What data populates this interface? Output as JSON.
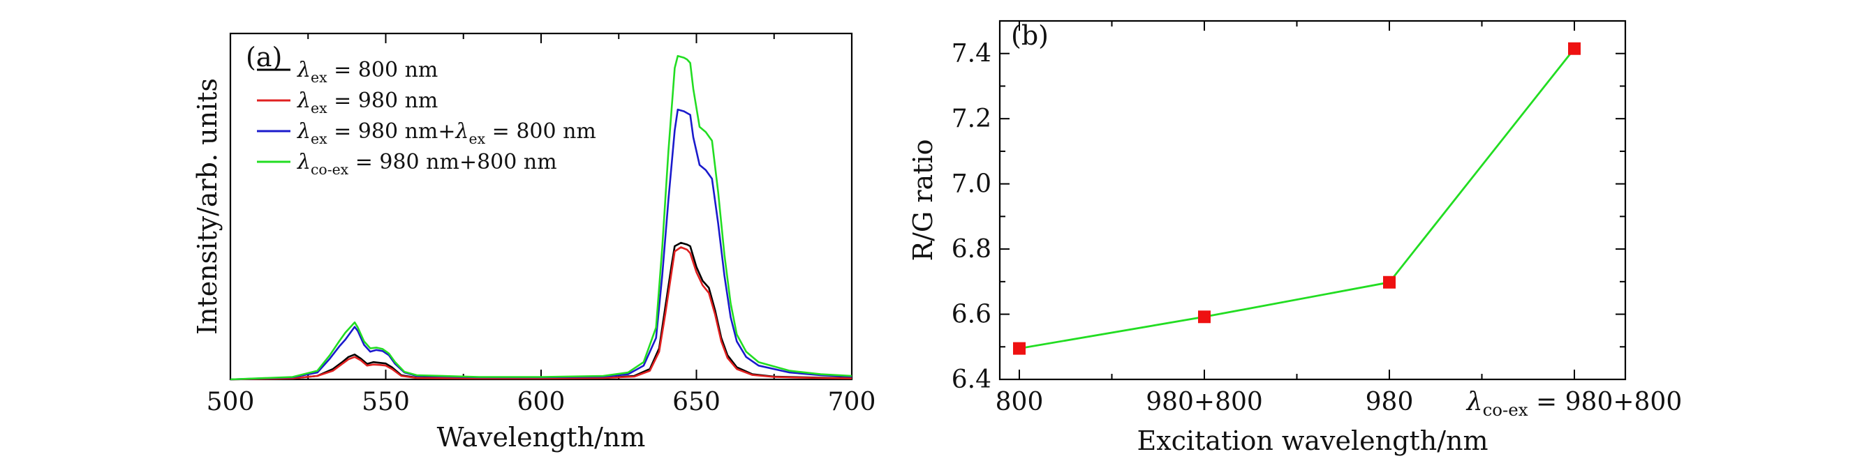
{
  "chart_data": [
    {
      "type": "line",
      "panel_label": "(a)",
      "xlabel": "Wavelength/nm",
      "ylabel": "Intensity/arb. units",
      "xlim": [
        500,
        700
      ],
      "ylim": [
        0,
        1.0
      ],
      "xticks": [
        500,
        550,
        600,
        650,
        700
      ],
      "x_tick_labels": [
        "500",
        "550",
        "600",
        "650",
        "700"
      ],
      "legend_position": "top-left",
      "series": [
        {
          "name": "800",
          "legend": {
            "symbol": "λ",
            "sub": "ex",
            "rest": " = 800 nm"
          },
          "color": "#000000",
          "points": [
            [
              500,
              0
            ],
            [
              520,
              0.003
            ],
            [
              528,
              0.01
            ],
            [
              533,
              0.03
            ],
            [
              536,
              0.05
            ],
            [
              538,
              0.065
            ],
            [
              540,
              0.072
            ],
            [
              542,
              0.06
            ],
            [
              544,
              0.045
            ],
            [
              546,
              0.05
            ],
            [
              548,
              0.048
            ],
            [
              550,
              0.046
            ],
            [
              552,
              0.035
            ],
            [
              555,
              0.012
            ],
            [
              560,
              0.005
            ],
            [
              580,
              0.003
            ],
            [
              600,
              0.003
            ],
            [
              620,
              0.004
            ],
            [
              630,
              0.01
            ],
            [
              635,
              0.03
            ],
            [
              638,
              0.09
            ],
            [
              640,
              0.21
            ],
            [
              642,
              0.33
            ],
            [
              643,
              0.385
            ],
            [
              645,
              0.395
            ],
            [
              647,
              0.39
            ],
            [
              648,
              0.385
            ],
            [
              650,
              0.325
            ],
            [
              652,
              0.285
            ],
            [
              654,
              0.265
            ],
            [
              656,
              0.2
            ],
            [
              658,
              0.12
            ],
            [
              660,
              0.07
            ],
            [
              663,
              0.035
            ],
            [
              668,
              0.015
            ],
            [
              675,
              0.008
            ],
            [
              690,
              0.005
            ],
            [
              700,
              0.004
            ]
          ]
        },
        {
          "name": "980",
          "legend": {
            "symbol": "λ",
            "sub": "ex",
            "rest": " = 980 nm"
          },
          "color": "#e02020",
          "points": [
            [
              500,
              0
            ],
            [
              520,
              0.003
            ],
            [
              528,
              0.01
            ],
            [
              533,
              0.025
            ],
            [
              536,
              0.045
            ],
            [
              538,
              0.058
            ],
            [
              540,
              0.065
            ],
            [
              542,
              0.055
            ],
            [
              544,
              0.04
            ],
            [
              546,
              0.043
            ],
            [
              548,
              0.042
            ],
            [
              550,
              0.04
            ],
            [
              552,
              0.03
            ],
            [
              555,
              0.01
            ],
            [
              560,
              0.004
            ],
            [
              580,
              0.003
            ],
            [
              600,
              0.003
            ],
            [
              620,
              0.004
            ],
            [
              630,
              0.008
            ],
            [
              635,
              0.025
            ],
            [
              638,
              0.08
            ],
            [
              640,
              0.19
            ],
            [
              642,
              0.31
            ],
            [
              643,
              0.37
            ],
            [
              645,
              0.382
            ],
            [
              647,
              0.375
            ],
            [
              648,
              0.365
            ],
            [
              650,
              0.31
            ],
            [
              652,
              0.272
            ],
            [
              654,
              0.25
            ],
            [
              656,
              0.188
            ],
            [
              658,
              0.11
            ],
            [
              660,
              0.062
            ],
            [
              663,
              0.03
            ],
            [
              668,
              0.013
            ],
            [
              675,
              0.007
            ],
            [
              690,
              0.004
            ],
            [
              700,
              0.003
            ]
          ]
        },
        {
          "name": "980+800",
          "legend": {
            "symbol": "λ",
            "sub": "ex",
            "rest": " = 980 nm+",
            "symbol2": "λ",
            "sub2": "ex",
            "rest2": " = 800 nm"
          },
          "color": "#1a1acc",
          "points": [
            [
              500,
              0
            ],
            [
              520,
              0.006
            ],
            [
              528,
              0.02
            ],
            [
              532,
              0.06
            ],
            [
              535,
              0.095
            ],
            [
              537,
              0.115
            ],
            [
              539,
              0.14
            ],
            [
              540,
              0.152
            ],
            [
              541,
              0.14
            ],
            [
              543,
              0.1
            ],
            [
              545,
              0.08
            ],
            [
              547,
              0.085
            ],
            [
              549,
              0.082
            ],
            [
              551,
              0.07
            ],
            [
              553,
              0.045
            ],
            [
              556,
              0.02
            ],
            [
              560,
              0.01
            ],
            [
              580,
              0.006
            ],
            [
              600,
              0.006
            ],
            [
              620,
              0.008
            ],
            [
              628,
              0.015
            ],
            [
              633,
              0.04
            ],
            [
              637,
              0.12
            ],
            [
              639,
              0.3
            ],
            [
              641,
              0.52
            ],
            [
              643,
              0.72
            ],
            [
              644,
              0.78
            ],
            [
              646,
              0.775
            ],
            [
              647,
              0.77
            ],
            [
              648,
              0.765
            ],
            [
              649,
              0.7
            ],
            [
              651,
              0.62
            ],
            [
              653,
              0.605
            ],
            [
              655,
              0.58
            ],
            [
              657,
              0.45
            ],
            [
              659,
              0.3
            ],
            [
              661,
              0.18
            ],
            [
              663,
              0.11
            ],
            [
              666,
              0.065
            ],
            [
              670,
              0.04
            ],
            [
              680,
              0.02
            ],
            [
              690,
              0.012
            ],
            [
              700,
              0.008
            ]
          ]
        },
        {
          "name": "co-ex 980+800",
          "legend": {
            "symbol": "λ",
            "sub": "co-ex",
            "rest": " = 980 nm+800 nm"
          },
          "color": "#22dd22",
          "points": [
            [
              500,
              0
            ],
            [
              520,
              0.007
            ],
            [
              528,
              0.025
            ],
            [
              532,
              0.07
            ],
            [
              535,
              0.11
            ],
            [
              537,
              0.135
            ],
            [
              539,
              0.155
            ],
            [
              540,
              0.165
            ],
            [
              541,
              0.15
            ],
            [
              543,
              0.11
            ],
            [
              545,
              0.09
            ],
            [
              547,
              0.092
            ],
            [
              549,
              0.088
            ],
            [
              551,
              0.075
            ],
            [
              553,
              0.05
            ],
            [
              556,
              0.022
            ],
            [
              560,
              0.012
            ],
            [
              580,
              0.007
            ],
            [
              600,
              0.007
            ],
            [
              620,
              0.01
            ],
            [
              628,
              0.02
            ],
            [
              633,
              0.05
            ],
            [
              637,
              0.15
            ],
            [
              639,
              0.38
            ],
            [
              641,
              0.66
            ],
            [
              643,
              0.9
            ],
            [
              644,
              0.935
            ],
            [
              646,
              0.93
            ],
            [
              647,
              0.925
            ],
            [
              648,
              0.915
            ],
            [
              649,
              0.84
            ],
            [
              651,
              0.73
            ],
            [
              653,
              0.715
            ],
            [
              655,
              0.69
            ],
            [
              657,
              0.54
            ],
            [
              659,
              0.36
            ],
            [
              661,
              0.22
            ],
            [
              663,
              0.13
            ],
            [
              666,
              0.08
            ],
            [
              670,
              0.05
            ],
            [
              680,
              0.025
            ],
            [
              690,
              0.015
            ],
            [
              700,
              0.01
            ]
          ]
        }
      ]
    },
    {
      "type": "line",
      "panel_label": "(b)",
      "xlabel": "Excitation wavelength/nm",
      "ylabel": "R/G ratio",
      "ylim": [
        6.4,
        7.5
      ],
      "yticks": [
        6.4,
        6.6,
        6.8,
        7.0,
        7.2,
        7.4
      ],
      "y_tick_labels": [
        "6.4",
        "6.6",
        "6.8",
        "7.0",
        "7.2",
        "7.4"
      ],
      "categories": [
        "800",
        "980+800",
        "980",
        "co-ex 980+800"
      ],
      "category_labels": [
        {
          "text": "800"
        },
        {
          "text": "980+800"
        },
        {
          "text": "980"
        },
        {
          "symbol": "λ",
          "sub": "co-ex",
          "rest": " = 980+800"
        }
      ],
      "values": [
        6.495,
        6.592,
        6.698,
        7.415
      ],
      "line_color": "#22dd22",
      "marker_color": "#ee1111",
      "marker": "square"
    }
  ]
}
